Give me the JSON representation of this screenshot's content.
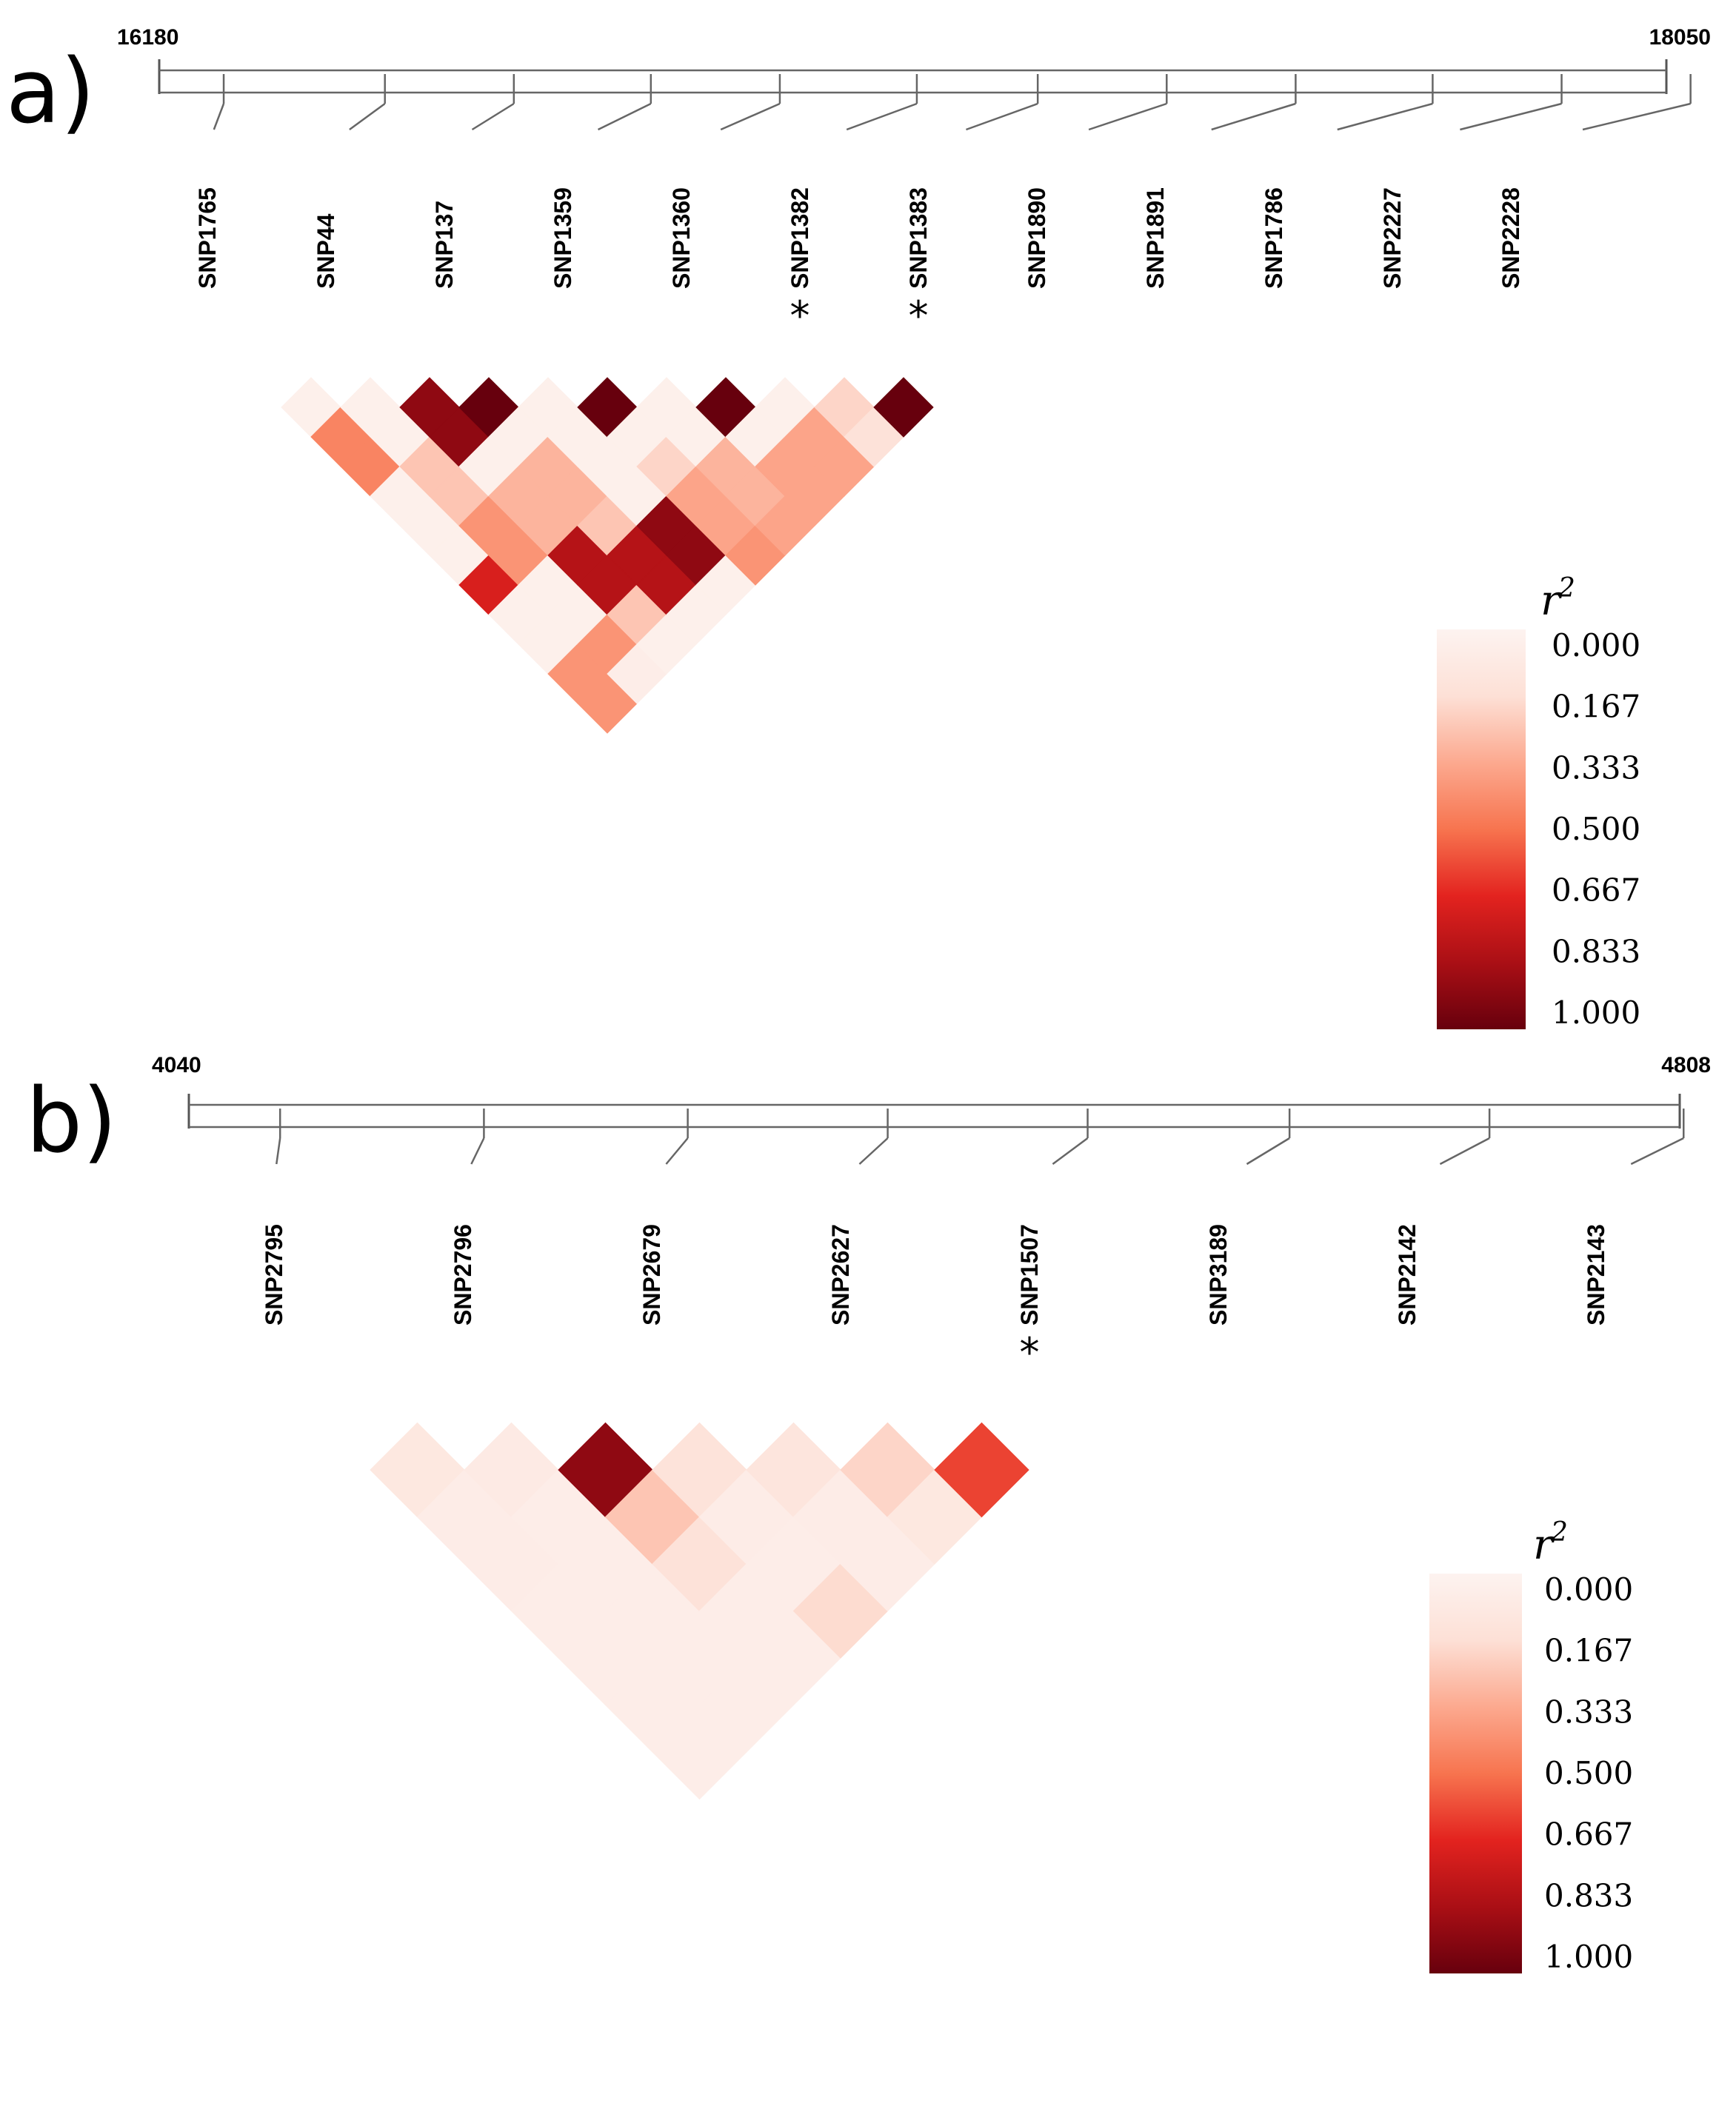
{
  "chart_data": [
    {
      "type": "heatmap",
      "panel_label": "a)",
      "region_start": "16180",
      "region_end": "18050",
      "region_range": [
        16180,
        18050
      ],
      "snps": [
        "SNP1765",
        "SNP44",
        "SNP137",
        "SNP1359",
        "SNP1360",
        "SNP1382",
        "SNP1383",
        "SNP1890",
        "SNP1891",
        "SNP1786",
        "SNP2227",
        "SNP2228"
      ],
      "snp_positions": [
        16260,
        16460,
        16620,
        16790,
        16950,
        17120,
        17270,
        17430,
        17590,
        17760,
        17920,
        18080
      ],
      "starred_snps": [
        "SNP1382",
        "SNP1383"
      ],
      "star_symbol": "*",
      "r2_matrix": [
        [
          0.03,
          0.45,
          0.45,
          0.03,
          0.03,
          0.03,
          0.7,
          0.03,
          0.03,
          0.4,
          0.4
        ],
        [
          0.03,
          0.03,
          0.25,
          0.25,
          0.4,
          0.4,
          0.03,
          0.03,
          0.4,
          0.05
        ],
        [
          0.9,
          0.9,
          0.03,
          0.3,
          0.3,
          0.8,
          0.8,
          0.25,
          0.03
        ],
        [
          1.0,
          0.03,
          0.3,
          0.3,
          0.25,
          0.8,
          0.8,
          0.03
        ],
        [
          0.03,
          0.03,
          0.03,
          0.03,
          0.9,
          0.9,
          0.03
        ],
        [
          1.0,
          0.03,
          0.2,
          0.35,
          0.35,
          0.4
        ],
        [
          0.03,
          0.03,
          0.3,
          0.3,
          0.35
        ],
        [
          1.0,
          0.03,
          0.35,
          0.35
        ],
        [
          0.03,
          0.35,
          0.35
        ],
        [
          0.2,
          0.15
        ],
        [
          1.0
        ]
      ]
    },
    {
      "type": "heatmap",
      "panel_label": "b)",
      "region_start": "4040",
      "region_end": "4808",
      "region_range": [
        4040,
        4808
      ],
      "snps": [
        "SNP2795",
        "SNP2796",
        "SNP2679",
        "SNP2627",
        "SNP1507",
        "SNP3189",
        "SNP2142",
        "SNP2143"
      ],
      "snp_positions": [
        4087,
        4192,
        4297,
        4400,
        4503,
        4607,
        4710,
        4810
      ],
      "starred_snps": [
        "SNP1507"
      ],
      "star_symbol": "*",
      "r2_matrix": [
        [
          0.1,
          0.06,
          0.06,
          0.05,
          0.05,
          0.05,
          0.05
        ],
        [
          0.08,
          0.05,
          0.05,
          0.05,
          0.05,
          0.05
        ],
        [
          0.9,
          0.25,
          0.15,
          0.05,
          0.05
        ],
        [
          0.14,
          0.06,
          0.05,
          0.18
        ],
        [
          0.12,
          0.06,
          0.06
        ],
        [
          0.2,
          0.1
        ],
        [
          0.6
        ]
      ]
    }
  ],
  "legend": {
    "title": "r",
    "superscript": "2",
    "ticks": [
      "0.000",
      "0.167",
      "0.333",
      "0.500",
      "0.667",
      "0.833",
      "1.000"
    ],
    "colors": [
      "#fdf3f0",
      "#fde0d6",
      "#fca98f",
      "#f7744f",
      "#e3231f",
      "#aa0f15",
      "#67000d"
    ]
  }
}
